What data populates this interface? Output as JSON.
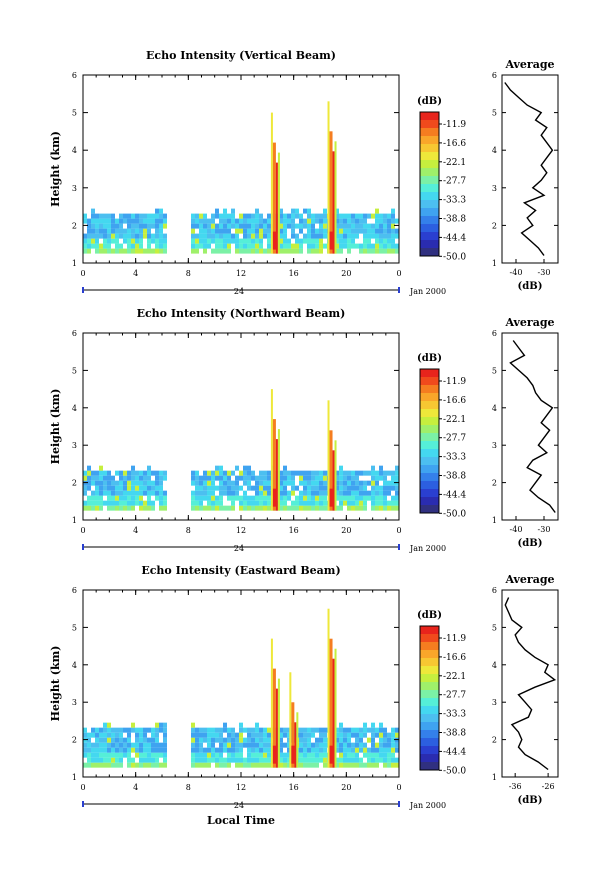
{
  "colorbar": {
    "unit_label": "(dB)",
    "tick_labels": [
      "-11.9",
      "-16.6",
      "-22.1",
      "-27.7",
      "-33.3",
      "-38.8",
      "-44.4",
      "-50.0"
    ],
    "colors": [
      "#e8241c",
      "#f04a1c",
      "#f57d20",
      "#f9a62a",
      "#f7c732",
      "#eee83a",
      "#c6ef3e",
      "#9ff06a",
      "#7bf1a6",
      "#55efd8",
      "#44d8f0",
      "#4cbff0",
      "#3fa3f0",
      "#3480ea",
      "#2c5fe0",
      "#2a3fd0",
      "#2a2cb0",
      "#303080"
    ]
  },
  "shared": {
    "xticks": [
      "0",
      "4",
      "8",
      "12",
      "16",
      "20",
      "0"
    ],
    "date_day": "24",
    "date_suffix": "Jan 2000",
    "xlabel": "Local Time",
    "ylabel": "Height (km)",
    "yticks": [
      "1",
      "2",
      "3",
      "4",
      "5",
      "6"
    ],
    "avg_title": "Average",
    "avg_xlabel": "(dB)"
  },
  "chart_data": [
    {
      "type": "heatmap",
      "title": "Echo Intensity (Vertical Beam)",
      "x_unit": "local time (h)",
      "xlim": [
        0,
        24
      ],
      "ylim": [
        1,
        6
      ],
      "layer_top_km": 2.4,
      "gap_hours": [
        6.2,
        8.2
      ],
      "spikes": [
        {
          "x": 14.5,
          "top": 5.0
        },
        {
          "x": 18.8,
          "top": 5.3
        }
      ],
      "avg_profile": {
        "xticks": [
          "-40",
          "-30"
        ],
        "xlim": [
          -45,
          -25
        ],
        "heights": [
          1.2,
          1.4,
          1.6,
          1.8,
          2.0,
          2.2,
          2.4,
          2.6,
          2.8,
          3.0,
          3.2,
          3.4,
          3.6,
          3.8,
          4.0,
          4.2,
          4.4,
          4.6,
          4.8,
          5.0,
          5.2,
          5.4,
          5.6,
          5.8
        ],
        "values": [
          -30,
          -32,
          -35,
          -38,
          -34,
          -36,
          -33,
          -37,
          -30,
          -34,
          -31,
          -29,
          -31,
          -29,
          -27,
          -29,
          -31,
          -29,
          -33,
          -31,
          -36,
          -39,
          -42,
          -44
        ]
      }
    },
    {
      "type": "heatmap",
      "title": "Echo Intensity (Northward Beam)",
      "x_unit": "local time (h)",
      "xlim": [
        0,
        24
      ],
      "ylim": [
        1,
        6
      ],
      "layer_top_km": 2.4,
      "gap_hours": [
        6.2,
        8.2
      ],
      "spikes": [
        {
          "x": 14.5,
          "top": 4.5
        },
        {
          "x": 18.8,
          "top": 4.2
        }
      ],
      "avg_profile": {
        "xticks": [
          "-40",
          "-30"
        ],
        "xlim": [
          -45,
          -25
        ],
        "heights": [
          1.2,
          1.4,
          1.6,
          1.8,
          2.0,
          2.2,
          2.4,
          2.6,
          2.8,
          3.0,
          3.2,
          3.4,
          3.6,
          3.8,
          4.0,
          4.2,
          4.4,
          4.6,
          4.8,
          5.0,
          5.2,
          5.4,
          5.6,
          5.8
        ],
        "values": [
          -26,
          -28,
          -32,
          -35,
          -33,
          -31,
          -36,
          -34,
          -29,
          -32,
          -30,
          -28,
          -31,
          -29,
          -27,
          -31,
          -33,
          -34,
          -36,
          -39,
          -42,
          -37,
          -39,
          -41
        ]
      }
    },
    {
      "type": "heatmap",
      "title": "Echo Intensity (Eastward Beam)",
      "x_unit": "local time (h)",
      "xlim": [
        0,
        24
      ],
      "ylim": [
        1,
        6
      ],
      "layer_top_km": 2.4,
      "gap_hours": [
        6.2,
        8.2
      ],
      "spikes": [
        {
          "x": 14.5,
          "top": 4.7
        },
        {
          "x": 15.9,
          "top": 3.8
        },
        {
          "x": 18.8,
          "top": 5.5
        }
      ],
      "avg_profile": {
        "xticks": [
          "-36",
          "-26"
        ],
        "xlim": [
          -40,
          -23
        ],
        "heights": [
          1.2,
          1.4,
          1.6,
          1.8,
          2.0,
          2.2,
          2.4,
          2.6,
          2.8,
          3.0,
          3.2,
          3.4,
          3.6,
          3.8,
          4.0,
          4.2,
          4.4,
          4.6,
          4.8,
          5.0,
          5.2,
          5.4,
          5.6,
          5.8
        ],
        "values": [
          -26,
          -29,
          -33,
          -35,
          -34,
          -35,
          -37,
          -32,
          -31,
          -33,
          -35,
          -30,
          -24,
          -27,
          -26,
          -30,
          -33,
          -35,
          -36,
          -34,
          -37,
          -38,
          -39,
          -38
        ]
      }
    }
  ]
}
